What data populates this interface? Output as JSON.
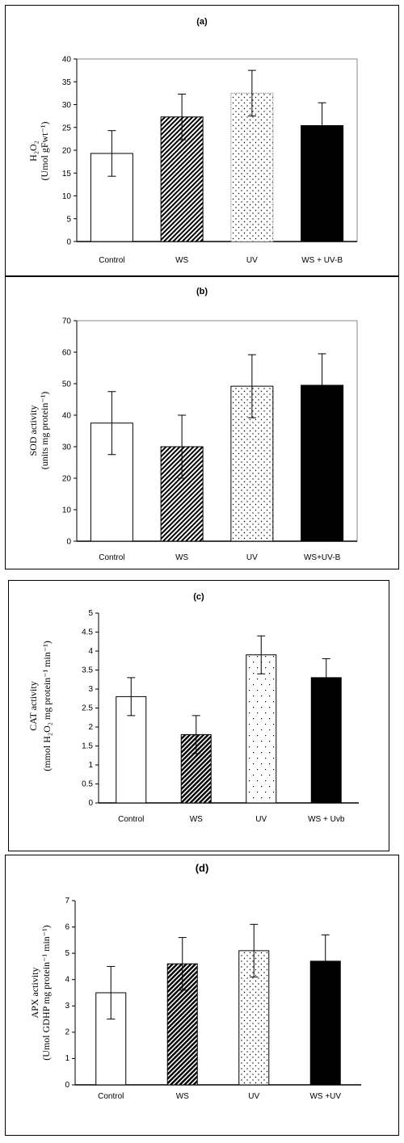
{
  "chart_data": [
    {
      "type": "bar",
      "panel_label": "(a)",
      "categories": [
        "Control",
        "WS",
        "UV",
        "WS + UV-B"
      ],
      "values": [
        19.3,
        27.3,
        32.5,
        25.4
      ],
      "errors": [
        5.0,
        5.0,
        5.0,
        5.0
      ],
      "ylabel_main": "H₂O₂",
      "ylabel_unit": "(Umol gFwt⁻¹)",
      "ylim": [
        0,
        40
      ],
      "yticks": [
        "0",
        "5",
        "10",
        "15",
        "20",
        "25",
        "30",
        "35",
        "40"
      ],
      "patterns": [
        "white",
        "diagonal",
        "dots",
        "black"
      ]
    },
    {
      "type": "bar",
      "panel_label": "(b)",
      "categories": [
        "Control",
        "WS",
        "UV",
        "WS+UV-B"
      ],
      "values": [
        37.5,
        30.0,
        49.2,
        49.5
      ],
      "errors": [
        10.0,
        10.0,
        10.0,
        10.0
      ],
      "ylabel_main": "SOD activity",
      "ylabel_unit": "(units mg protein⁻¹)",
      "ylim": [
        0,
        70
      ],
      "yticks": [
        "0",
        "10",
        "20",
        "30",
        "40",
        "50",
        "60",
        "70"
      ],
      "patterns": [
        "white",
        "diagonal",
        "dots",
        "black"
      ]
    },
    {
      "type": "bar",
      "panel_label": "(c)",
      "categories": [
        "Control",
        "WS",
        "UV",
        "WS + Uvb"
      ],
      "values": [
        2.8,
        1.8,
        3.9,
        3.3
      ],
      "errors": [
        0.5,
        0.5,
        0.5,
        0.5
      ],
      "ylabel_main": "CAT activity",
      "ylabel_unit": "(mmol H₂O₂ mg protein⁻¹ min⁻¹)",
      "ylim": [
        0,
        5
      ],
      "yticks": [
        "0",
        "0.5",
        "1",
        "1.5",
        "2",
        "2.5",
        "3",
        "3.5",
        "4",
        "4.5",
        "5"
      ],
      "patterns": [
        "white",
        "diagonal-dense",
        "dots-sparse",
        "black"
      ]
    },
    {
      "type": "bar",
      "panel_label": "(d)",
      "categories": [
        "Control",
        "WS",
        "UV",
        "WS +UV"
      ],
      "values": [
        3.5,
        4.6,
        5.1,
        4.7
      ],
      "errors": [
        1.0,
        1.0,
        1.0,
        1.0
      ],
      "ylabel_main": "APX activity",
      "ylabel_unit": "(Umol GDHP mg protein⁻¹ min⁻¹)",
      "ylim": [
        0,
        7
      ],
      "yticks": [
        "0",
        "1",
        "2",
        "3",
        "4",
        "5",
        "6",
        "7"
      ],
      "patterns": [
        "white",
        "diagonal-dense",
        "dots",
        "black"
      ]
    }
  ]
}
